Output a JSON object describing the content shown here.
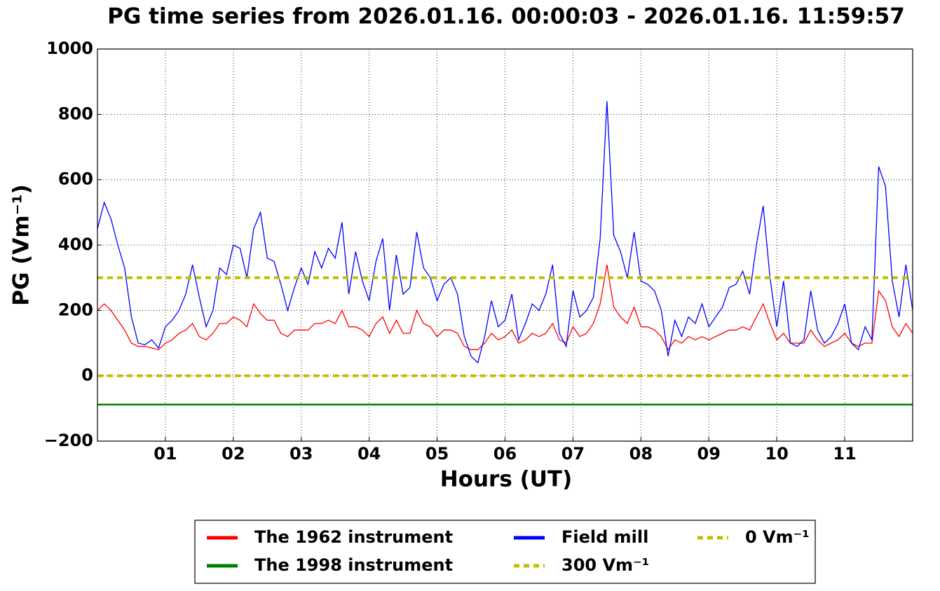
{
  "chart_data": {
    "type": "line",
    "title": "PG time series from 2026.01.16. 00:00:03 - 2026.01.16. 11:59:57",
    "x_label": "Hours (UT)",
    "y_label": "PG (Vm⁻¹)",
    "xlim": [
      0,
      12
    ],
    "xticks": [
      {
        "value": 1,
        "label": "01"
      },
      {
        "value": 2,
        "label": "02"
      },
      {
        "value": 3,
        "label": "03"
      },
      {
        "value": 4,
        "label": "04"
      },
      {
        "value": 5,
        "label": "05"
      },
      {
        "value": 6,
        "label": "06"
      },
      {
        "value": 7,
        "label": "07"
      },
      {
        "value": 8,
        "label": "08"
      },
      {
        "value": 9,
        "label": "09"
      },
      {
        "value": 10,
        "label": "10"
      },
      {
        "value": 11,
        "label": "11"
      }
    ],
    "ylim": [
      -200,
      1000
    ],
    "yticks": [
      {
        "value": -200,
        "label": "−200"
      },
      0,
      200,
      400,
      600,
      800,
      1000
    ],
    "grid": true,
    "legend": "below",
    "x": [
      0,
      0.1,
      0.2,
      0.3,
      0.4,
      0.5,
      0.6,
      0.7,
      0.8,
      0.9,
      1,
      1.1,
      1.2,
      1.3,
      1.4,
      1.5,
      1.6,
      1.7,
      1.8,
      1.9,
      2,
      2.1,
      2.2,
      2.3,
      2.4,
      2.5,
      2.6,
      2.7,
      2.8,
      2.9,
      3,
      3.1,
      3.2,
      3.3,
      3.4,
      3.5,
      3.6,
      3.7,
      3.8,
      3.9,
      4,
      4.1,
      4.2,
      4.3,
      4.4,
      4.5,
      4.6,
      4.7,
      4.8,
      4.9,
      5,
      5.1,
      5.2,
      5.3,
      5.4,
      5.5,
      5.6,
      5.7,
      5.8,
      5.9,
      6,
      6.1,
      6.2,
      6.3,
      6.4,
      6.5,
      6.6,
      6.7,
      6.8,
      6.9,
      7,
      7.1,
      7.2,
      7.3,
      7.4,
      7.5,
      7.6,
      7.7,
      7.8,
      7.9,
      8,
      8.1,
      8.2,
      8.3,
      8.4,
      8.5,
      8.6,
      8.7,
      8.8,
      8.9,
      9,
      9.1,
      9.2,
      9.3,
      9.4,
      9.5,
      9.6,
      9.7,
      9.8,
      9.9,
      10,
      10.1,
      10.2,
      10.3,
      10.4,
      10.5,
      10.6,
      10.7,
      10.8,
      10.9,
      11,
      11.1,
      11.2,
      11.3,
      11.4,
      11.5,
      11.6,
      11.7,
      11.8,
      11.9,
      12
    ],
    "series": [
      {
        "name": "The 1962 instrument",
        "color": "#ff0000",
        "values": [
          200,
          220,
          200,
          170,
          140,
          100,
          90,
          90,
          85,
          80,
          100,
          110,
          130,
          140,
          160,
          120,
          110,
          130,
          160,
          160,
          180,
          170,
          150,
          220,
          190,
          170,
          170,
          130,
          120,
          140,
          140,
          140,
          160,
          160,
          170,
          160,
          200,
          150,
          150,
          140,
          120,
          160,
          180,
          130,
          170,
          130,
          130,
          200,
          160,
          150,
          120,
          140,
          140,
          130,
          90,
          80,
          80,
          100,
          130,
          110,
          120,
          140,
          100,
          110,
          130,
          120,
          130,
          160,
          110,
          100,
          150,
          120,
          130,
          160,
          220,
          340,
          210,
          180,
          160,
          210,
          150,
          150,
          140,
          120,
          80,
          110,
          100,
          120,
          110,
          120,
          110,
          120,
          130,
          140,
          140,
          150,
          140,
          180,
          220,
          160,
          110,
          130,
          100,
          100,
          100,
          140,
          110,
          90,
          100,
          110,
          130,
          100,
          90,
          100,
          100,
          260,
          230,
          150,
          120,
          160,
          130
        ]
      },
      {
        "name": "The 1998 instrument",
        "color": "#008000",
        "values": [
          -88,
          -88,
          -88,
          -88,
          -88,
          -88,
          -88,
          -88,
          -88,
          -88,
          -88,
          -88,
          -88,
          -88,
          -88,
          -88,
          -88,
          -88,
          -88,
          -88,
          -88,
          -88,
          -88,
          -88,
          -88,
          -88,
          -88,
          -88,
          -88,
          -88,
          -88,
          -88,
          -88,
          -88,
          -88,
          -88,
          -88,
          -88,
          -88,
          -88,
          -88,
          -88,
          -88,
          -88,
          -88,
          -88,
          -88,
          -88,
          -88,
          -88,
          -88,
          -88,
          -88,
          -88,
          -88,
          -88,
          -88,
          -88,
          -88,
          -88,
          -88,
          -88,
          -88,
          -88,
          -88,
          -88,
          -88,
          -88,
          -88,
          -88,
          -88,
          -88,
          -88,
          -88,
          -88,
          -88,
          -88,
          -88,
          -88,
          -88,
          -88,
          -88,
          -88,
          -88,
          -88,
          -88,
          -88,
          -88,
          -88,
          -88,
          -88,
          -88,
          -88,
          -88,
          -88,
          -88,
          -88,
          -88,
          -88,
          -88,
          -88,
          -88,
          -88,
          -88,
          -88,
          -88,
          -88,
          -88,
          -88,
          -88,
          -88,
          -88,
          -88,
          -88,
          -88,
          -88,
          -88,
          -88,
          -88,
          -88,
          -88
        ]
      },
      {
        "name": "Field mill",
        "color": "#0000ff",
        "values": [
          450,
          530,
          480,
          400,
          330,
          180,
          100,
          95,
          110,
          85,
          150,
          170,
          200,
          250,
          340,
          240,
          150,
          200,
          330,
          310,
          400,
          390,
          300,
          450,
          500,
          360,
          350,
          280,
          200,
          270,
          330,
          280,
          380,
          330,
          390,
          360,
          470,
          250,
          380,
          290,
          230,
          350,
          420,
          200,
          370,
          250,
          270,
          440,
          330,
          300,
          230,
          280,
          300,
          250,
          120,
          60,
          40,
          120,
          230,
          150,
          170,
          250,
          110,
          160,
          220,
          200,
          250,
          340,
          130,
          90,
          260,
          180,
          200,
          240,
          420,
          840,
          430,
          380,
          300,
          440,
          290,
          280,
          260,
          200,
          60,
          170,
          120,
          180,
          160,
          220,
          150,
          180,
          210,
          270,
          280,
          320,
          250,
          400,
          520,
          300,
          150,
          290,
          100,
          90,
          110,
          260,
          140,
          100,
          120,
          160,
          220,
          100,
          80,
          150,
          110,
          640,
          580,
          290,
          180,
          340,
          200
        ]
      }
    ],
    "hlines": [
      {
        "name": "300 Vm⁻¹",
        "color": "#bfbf00",
        "value": 300
      },
      {
        "name": "0 Vm⁻¹",
        "color": "#bfbf00",
        "value": 0
      }
    ]
  }
}
